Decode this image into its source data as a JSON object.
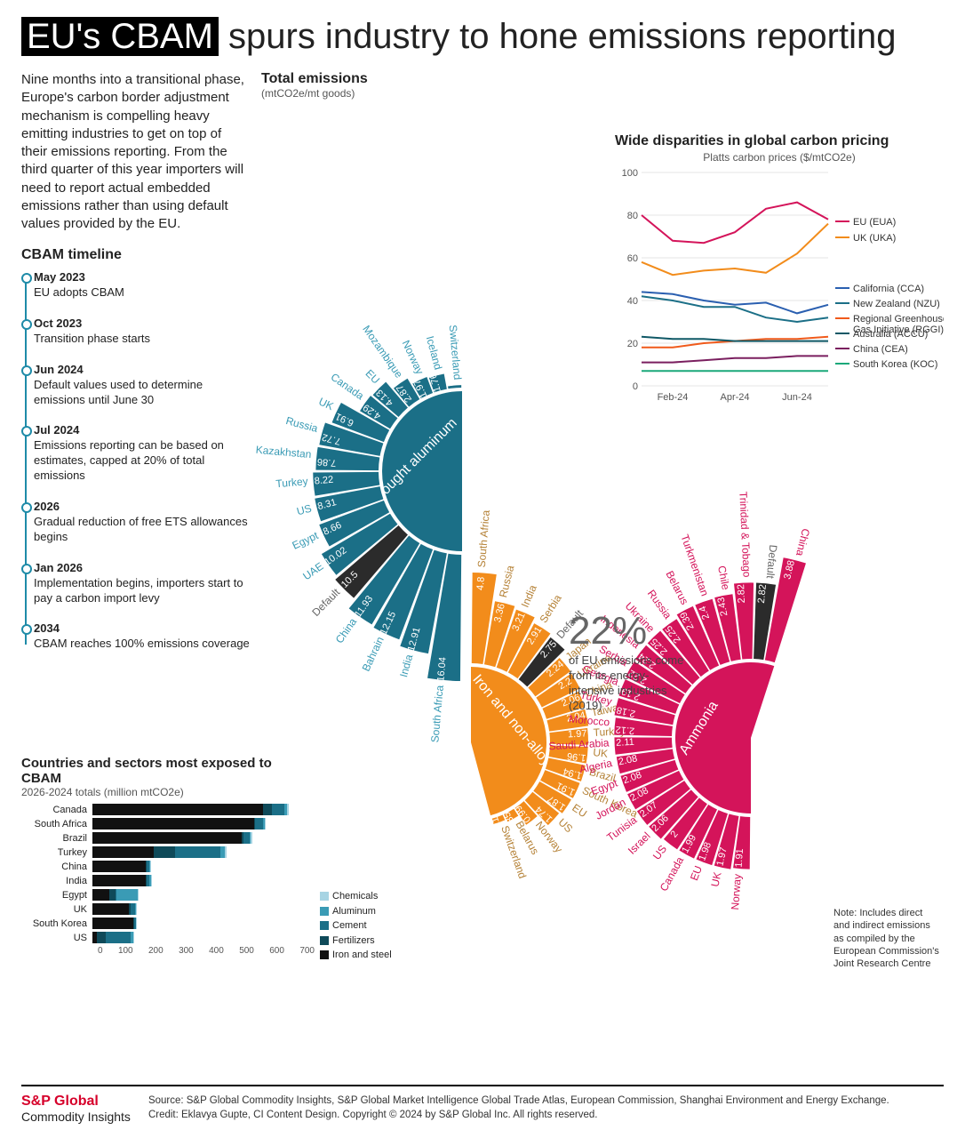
{
  "title_prefix": "EU's CBAM",
  "title_rest": " spurs industry to hone emissions reporting",
  "intro": "Nine months into a transitional phase, Europe's carbon border adjustment mechanism is compelling heavy emitting industries to get on top of their emissions reporting. From the third quarter of this year importers will need to report actual embedded emissions rather than using default values provided by the EU.",
  "timeline_title": "CBAM timeline",
  "timeline": [
    {
      "date": "May 2023",
      "text": "EU adopts CBAM"
    },
    {
      "date": "Oct 2023",
      "text": "Transition phase starts"
    },
    {
      "date": "Jun 2024",
      "text": "Default values used to determine emissions until June 30"
    },
    {
      "date": "Jul 2024",
      "text": "Emissions reporting can be based on estimates, capped at 20% of total emissions"
    },
    {
      "date": "2026",
      "text": "Gradual reduction of free ETS allowances begins"
    },
    {
      "date": "Jan 2026",
      "text": "Implementation begins, importers start to pay a carbon import levy"
    },
    {
      "date": "2034",
      "text": "CBAM reaches 100% emissions coverage"
    }
  ],
  "radial_title": "Total emissions",
  "radial_unit": "(mtCO2e/mt goods)",
  "center_pct": "22%",
  "center_desc": "of EU emissions come from its energy-intensive industries (2019)",
  "sectors": [
    {
      "name": "Unwrought aluminum",
      "color": "#1b6f87",
      "label_color": "#3a9bb5",
      "start_deg": 180,
      "end_deg": 360,
      "max_val": 16.04,
      "bars": [
        {
          "label": "South Africa",
          "value": 16.04
        },
        {
          "label": "India",
          "value": 12.91
        },
        {
          "label": "Bahrain",
          "value": 12.15
        },
        {
          "label": "China",
          "value": 11.93
        },
        {
          "label": "Default",
          "value": 10.5,
          "default": true
        },
        {
          "label": "UAE",
          "value": 10.02
        },
        {
          "label": "Egypt",
          "value": 8.66
        },
        {
          "label": "US",
          "value": 8.31
        },
        {
          "label": "Turkey",
          "value": 8.22
        },
        {
          "label": "Kazakhstan",
          "value": 7.86
        },
        {
          "label": "Russia",
          "value": 7.72
        },
        {
          "label": "UK",
          "value": 6.91
        },
        {
          "label": "Canada",
          "value": 4.29
        },
        {
          "label": "EU",
          "value": 4.13
        },
        {
          "label": "Mozambique",
          "value": 2.87
        },
        {
          "label": "Norway",
          "value": 1.97
        },
        {
          "label": "Iceland",
          "value": 1.76
        },
        {
          "label": "Switzerland",
          "value": 0.1
        }
      ]
    },
    {
      "name": "Iron and non-alloy steel",
      "color": "#f28c1b",
      "label_color": "#b58237",
      "start_deg": 0,
      "end_deg": 165,
      "max_val": 4.8,
      "bars": [
        {
          "label": "South Africa",
          "value": 4.8
        },
        {
          "label": "Russia",
          "value": 3.36
        },
        {
          "label": "India",
          "value": 3.21
        },
        {
          "label": "Serbia",
          "value": 2.91
        },
        {
          "label": "Default",
          "value": 2.75,
          "default": true
        },
        {
          "label": "Japan",
          "value": 2.24
        },
        {
          "label": "Ukraine",
          "value": 2.2
        },
        {
          "label": "China",
          "value": 2.06
        },
        {
          "label": "Taiwan",
          "value": 2.04
        },
        {
          "label": "Turkey",
          "value": 1.97
        },
        {
          "label": "UK",
          "value": 1.96
        },
        {
          "label": "Brazil",
          "value": 1.94
        },
        {
          "label": "South Korea",
          "value": 1.91
        },
        {
          "label": "EU",
          "value": 1.87
        },
        {
          "label": "US",
          "value": 1.74
        },
        {
          "label": "Norway",
          "value": 0.99
        },
        {
          "label": "Belarus",
          "value": 0.35
        },
        {
          "label": "Switzerland",
          "value": 0.21
        }
      ]
    },
    {
      "name": "Ammonia",
      "color": "#d4145a",
      "label_color": "#d4145a",
      "start_deg": 180,
      "end_deg": 378,
      "max_val": 3.88,
      "bars": [
        {
          "label": "Norway",
          "value": 1.91
        },
        {
          "label": "UK",
          "value": 1.97
        },
        {
          "label": "EU",
          "value": 1.98
        },
        {
          "label": "Canada",
          "value": 1.99
        },
        {
          "label": "US",
          "value": 2.0
        },
        {
          "label": "Israel",
          "value": 2.06
        },
        {
          "label": "Tunisia",
          "value": 2.07
        },
        {
          "label": "Jordan",
          "value": 2.08
        },
        {
          "label": "Egypt",
          "value": 2.08
        },
        {
          "label": "Algeria",
          "value": 2.08
        },
        {
          "label": "Saudi Arabia",
          "value": 2.11
        },
        {
          "label": "Morocco",
          "value": 2.12
        },
        {
          "label": "Turkey",
          "value": 2.18
        },
        {
          "label": "Georgia",
          "value": 2.19
        },
        {
          "label": "Serbia",
          "value": 2.22
        },
        {
          "label": "Indonesia",
          "value": 2.24
        },
        {
          "label": "Ukraine",
          "value": 2.25
        },
        {
          "label": "Russia",
          "value": 2.25
        },
        {
          "label": "Belarus",
          "value": 2.39
        },
        {
          "label": "Turkmenistan",
          "value": 2.4
        },
        {
          "label": "Chile",
          "value": 2.43
        },
        {
          "label": "Trinidad & Tobago",
          "value": 2.82
        },
        {
          "label": "Default",
          "value": 2.82,
          "default": true
        },
        {
          "label": "China",
          "value": 3.88
        }
      ]
    }
  ],
  "default_color": "#2b2b2b",
  "note_text": "Note: Includes direct and indirect emissions as compiled by the European Commission's Joint Research Centre",
  "line_chart": {
    "title": "Wide disparities in global carbon pricing",
    "subtitle": "Platts carbon prices ($/mtCO2e)",
    "ymax": 100,
    "ytick_step": 20,
    "x_labels": [
      "Feb-24",
      "Apr-24",
      "Jun-24"
    ],
    "series": [
      {
        "name": "EU (EUA)",
        "color": "#d4145a",
        "values": [
          80,
          68,
          67,
          72,
          83,
          86,
          78
        ]
      },
      {
        "name": "UK (UKA)",
        "color": "#f28c1b",
        "values": [
          58,
          52,
          54,
          55,
          53,
          62,
          76
        ]
      },
      {
        "name": "California (CCA)",
        "color": "#2a5fb0",
        "values": [
          44,
          43,
          40,
          38,
          39,
          34,
          38
        ]
      },
      {
        "name": "New Zealand (NZU)",
        "color": "#1b6f87",
        "values": [
          42,
          40,
          37,
          37,
          32,
          30,
          32
        ]
      },
      {
        "name": "Regional Greenhouse Gas Initiative (RGGI)",
        "color": "#f05a1b",
        "values": [
          18,
          18,
          20,
          21,
          22,
          22,
          23
        ]
      },
      {
        "name": "Australia (ACCU)",
        "color": "#0f5866",
        "values": [
          23,
          22,
          22,
          21,
          21,
          21,
          21
        ]
      },
      {
        "name": "China (CEA)",
        "color": "#7a1f5f",
        "values": [
          11,
          11,
          12,
          13,
          13,
          14,
          14
        ]
      },
      {
        "name": "South Korea (KOC)",
        "color": "#1aa87a",
        "values": [
          7,
          7,
          7,
          7,
          7,
          7,
          7
        ]
      }
    ]
  },
  "stacked": {
    "title": "Countries and sectors most exposed to CBAM",
    "subtitle": "2026-2024 totals (million mtCO2e)",
    "xmax": 700,
    "xticks": [
      0,
      100,
      200,
      300,
      400,
      500,
      600,
      700
    ],
    "legend": [
      {
        "name": "Chemicals",
        "color": "#a7d4e3"
      },
      {
        "name": "Aluminum",
        "color": "#3a9bb5"
      },
      {
        "name": "Cement",
        "color": "#1b6f87"
      },
      {
        "name": "Fertilizers",
        "color": "#0f4a59"
      },
      {
        "name": "Iron and steel",
        "color": "#111111"
      }
    ],
    "rows": [
      {
        "label": "Canada",
        "segs": [
          560,
          30,
          40,
          10,
          5
        ]
      },
      {
        "label": "South Africa",
        "segs": [
          530,
          5,
          25,
          5,
          5
        ]
      },
      {
        "label": "Brazil",
        "segs": [
          490,
          5,
          20,
          5,
          5
        ]
      },
      {
        "label": "Turkey",
        "segs": [
          200,
          70,
          150,
          15,
          5
        ]
      },
      {
        "label": "China",
        "segs": [
          175,
          3,
          10,
          3,
          2
        ]
      },
      {
        "label": "India",
        "segs": [
          175,
          3,
          8,
          7,
          2
        ]
      },
      {
        "label": "Egypt",
        "segs": [
          55,
          20,
          5,
          70,
          2
        ]
      },
      {
        "label": "UK",
        "segs": [
          120,
          5,
          15,
          3,
          3
        ]
      },
      {
        "label": "South Korea",
        "segs": [
          135,
          2,
          5,
          2,
          2
        ]
      },
      {
        "label": "US",
        "segs": [
          15,
          30,
          80,
          8,
          4
        ]
      }
    ]
  },
  "footer_brand1": "S&P Global",
  "footer_brand2": "Commodity Insights",
  "footer_source": "Source: S&P Global Commodity Insights, S&P Global Market Intelligence Global Trade Atlas, European Commission, Shanghai Environment and Energy Exchange.",
  "footer_credit": "Credit: Eklavya Gupte, CI Content Design. Copyright © 2024 by S&P Global Inc. All rights reserved."
}
